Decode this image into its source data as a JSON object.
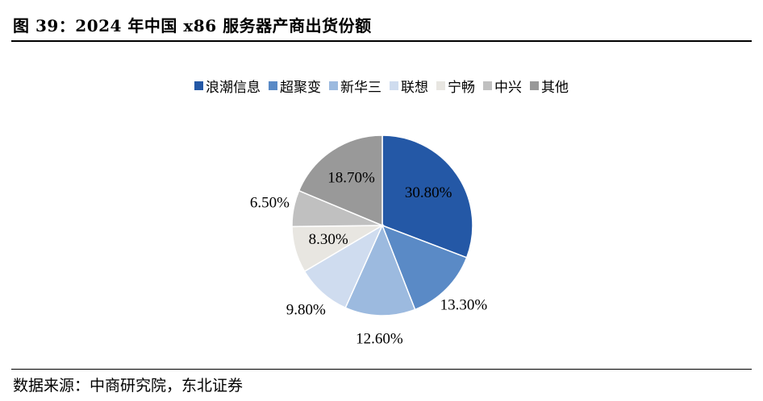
{
  "title": "图 39：2024 年中国 x86 服务器产商出货份额",
  "source": "数据来源：中商研究院，东北证券",
  "chart_data": {
    "type": "pie",
    "title": "",
    "legend_position": "top",
    "slices": [
      {
        "name": "浪潮信息",
        "value": 30.8,
        "label": "30.80%",
        "color": "#2458A6"
      },
      {
        "name": "超聚变",
        "value": 13.3,
        "label": "13.30%",
        "color": "#5A8AC6"
      },
      {
        "name": "新华三",
        "value": 12.6,
        "label": "12.60%",
        "color": "#9CBADF"
      },
      {
        "name": "联想",
        "value": 9.8,
        "label": "9.80%",
        "color": "#CFDCEF"
      },
      {
        "name": "宁畅",
        "value": 8.3,
        "label": "8.30%",
        "color": "#E8E6E1"
      },
      {
        "name": "中兴",
        "value": 6.5,
        "label": "6.50%",
        "color": "#C0C0C0"
      },
      {
        "name": "其他",
        "value": 18.7,
        "label": "18.70%",
        "color": "#999999"
      }
    ]
  }
}
